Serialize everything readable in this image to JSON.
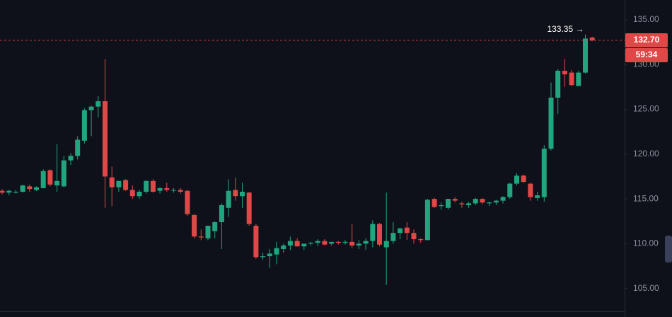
{
  "chart_data": {
    "type": "candlestick",
    "up_color": "#22a57f",
    "down_color": "#e04848",
    "ylim": [
      102.45,
      137.2
    ],
    "yticks": [
      {
        "value": 105,
        "label": "105.00"
      },
      {
        "value": 110,
        "label": "110.00"
      },
      {
        "value": 115,
        "label": "115.00"
      },
      {
        "value": 120,
        "label": "120.00"
      },
      {
        "value": 125,
        "label": "125.00"
      },
      {
        "value": 130,
        "label": "130.00"
      },
      {
        "value": 135,
        "label": "135.00"
      }
    ],
    "open": [
      115.9,
      115.7,
      115.7,
      115.8,
      116.4,
      116.0,
      116.2,
      118.2,
      116.5,
      116.4,
      119.3,
      119.8,
      121.5,
      124.9,
      125.3,
      125.9,
      117.4,
      116.3,
      117.1,
      116.0,
      115.3,
      115.8,
      117.0,
      115.9,
      116.2,
      116.0,
      116.0,
      115.9,
      113.2,
      110.8,
      110.6,
      111.4,
      112.4,
      114.0,
      116.0,
      115.3,
      115.7,
      112.0,
      108.5,
      108.6,
      108.8,
      109.4,
      109.8,
      110.3,
      109.7,
      110.0,
      110.1,
      110.3,
      110.0,
      110.2,
      110.1,
      110.2,
      109.8,
      110.0,
      110.3,
      112.2,
      109.6,
      110.3,
      111.2,
      111.8,
      111.2,
      110.5,
      110.4,
      115.0,
      114.2,
      114.0,
      115.0,
      114.5,
      114.3,
      114.5,
      115.0,
      114.5,
      114.6,
      114.8,
      115.2,
      116.7,
      117.6,
      116.7,
      115.1,
      115.2,
      120.6,
      126.3,
      129.3,
      129.1,
      127.6,
      129.1,
      133.0
    ],
    "high": [
      116.1,
      116.0,
      116.0,
      116.6,
      116.6,
      116.4,
      118.3,
      118.3,
      121.1,
      119.8,
      120.1,
      122.0,
      125.1,
      125.4,
      126.5,
      130.6,
      118.6,
      117.0,
      117.2,
      116.5,
      116.0,
      117.1,
      117.2,
      116.3,
      116.8,
      116.2,
      116.2,
      116.0,
      113.3,
      111.6,
      112.0,
      112.5,
      114.5,
      117.2,
      117.4,
      116.8,
      115.8,
      112.2,
      109.0,
      109.4,
      110.2,
      110.0,
      110.8,
      110.6,
      110.0,
      110.2,
      110.5,
      110.5,
      110.2,
      110.3,
      110.4,
      112.2,
      110.4,
      110.6,
      112.6,
      112.3,
      115.7,
      112.4,
      111.8,
      112.4,
      111.6,
      110.6,
      115.0,
      115.1,
      114.6,
      115.0,
      115.2,
      114.7,
      114.7,
      115.1,
      115.1,
      114.7,
      114.9,
      115.3,
      116.8,
      117.9,
      117.7,
      116.8,
      115.8,
      121.0,
      128.0,
      129.5,
      130.6,
      129.4,
      129.3,
      133.35,
      133.1
    ],
    "low": [
      115.5,
      115.4,
      115.6,
      115.7,
      115.8,
      115.9,
      116.2,
      116.4,
      115.8,
      116.3,
      118.8,
      119.4,
      121.2,
      122.0,
      124.1,
      114.0,
      114.2,
      115.8,
      115.9,
      115.0,
      115.0,
      115.6,
      115.7,
      115.6,
      115.8,
      115.7,
      115.6,
      113.1,
      110.6,
      110.4,
      110.4,
      110.6,
      109.4,
      113.0,
      114.8,
      114.0,
      112.0,
      108.3,
      108.2,
      107.3,
      107.7,
      109.0,
      109.3,
      109.7,
      109.3,
      109.8,
      109.7,
      109.8,
      109.8,
      109.9,
      109.9,
      109.5,
      109.4,
      109.3,
      109.6,
      109.7,
      105.4,
      110.0,
      110.5,
      110.4,
      110.0,
      110.1,
      110.4,
      114.0,
      113.8,
      113.8,
      114.6,
      114.0,
      114.0,
      114.3,
      114.4,
      114.2,
      114.3,
      114.5,
      115.0,
      116.5,
      116.8,
      114.8,
      114.8,
      114.7,
      120.4,
      124.5,
      127.5,
      127.6,
      127.6,
      129.0,
      132.6
    ],
    "close": [
      115.7,
      115.9,
      115.8,
      116.5,
      116.1,
      116.3,
      118.1,
      116.6,
      117.0,
      119.3,
      119.8,
      121.6,
      124.9,
      125.3,
      125.9,
      117.5,
      116.3,
      117.0,
      116.0,
      115.3,
      115.8,
      117.0,
      115.8,
      116.2,
      116.0,
      116.0,
      115.8,
      113.3,
      110.8,
      110.7,
      112.0,
      112.4,
      114.3,
      115.9,
      115.3,
      115.8,
      112.2,
      108.5,
      108.6,
      108.9,
      109.5,
      109.8,
      110.3,
      109.7,
      110.0,
      110.1,
      110.3,
      109.9,
      110.2,
      110.1,
      110.2,
      109.8,
      110.0,
      110.3,
      112.2,
      109.9,
      110.3,
      111.2,
      111.7,
      111.2,
      110.5,
      110.4,
      114.9,
      114.1,
      114.3,
      115.0,
      114.8,
      114.4,
      114.5,
      115.0,
      114.6,
      114.6,
      114.8,
      115.2,
      116.7,
      117.6,
      116.9,
      115.2,
      115.4,
      120.6,
      126.3,
      129.3,
      128.9,
      127.7,
      129.1,
      132.9,
      132.7
    ],
    "high_annotation": {
      "value": 133.35,
      "label": "133.35 →"
    },
    "last_price": {
      "value": 132.7,
      "label": "132.70"
    },
    "countdown": "59:34"
  }
}
